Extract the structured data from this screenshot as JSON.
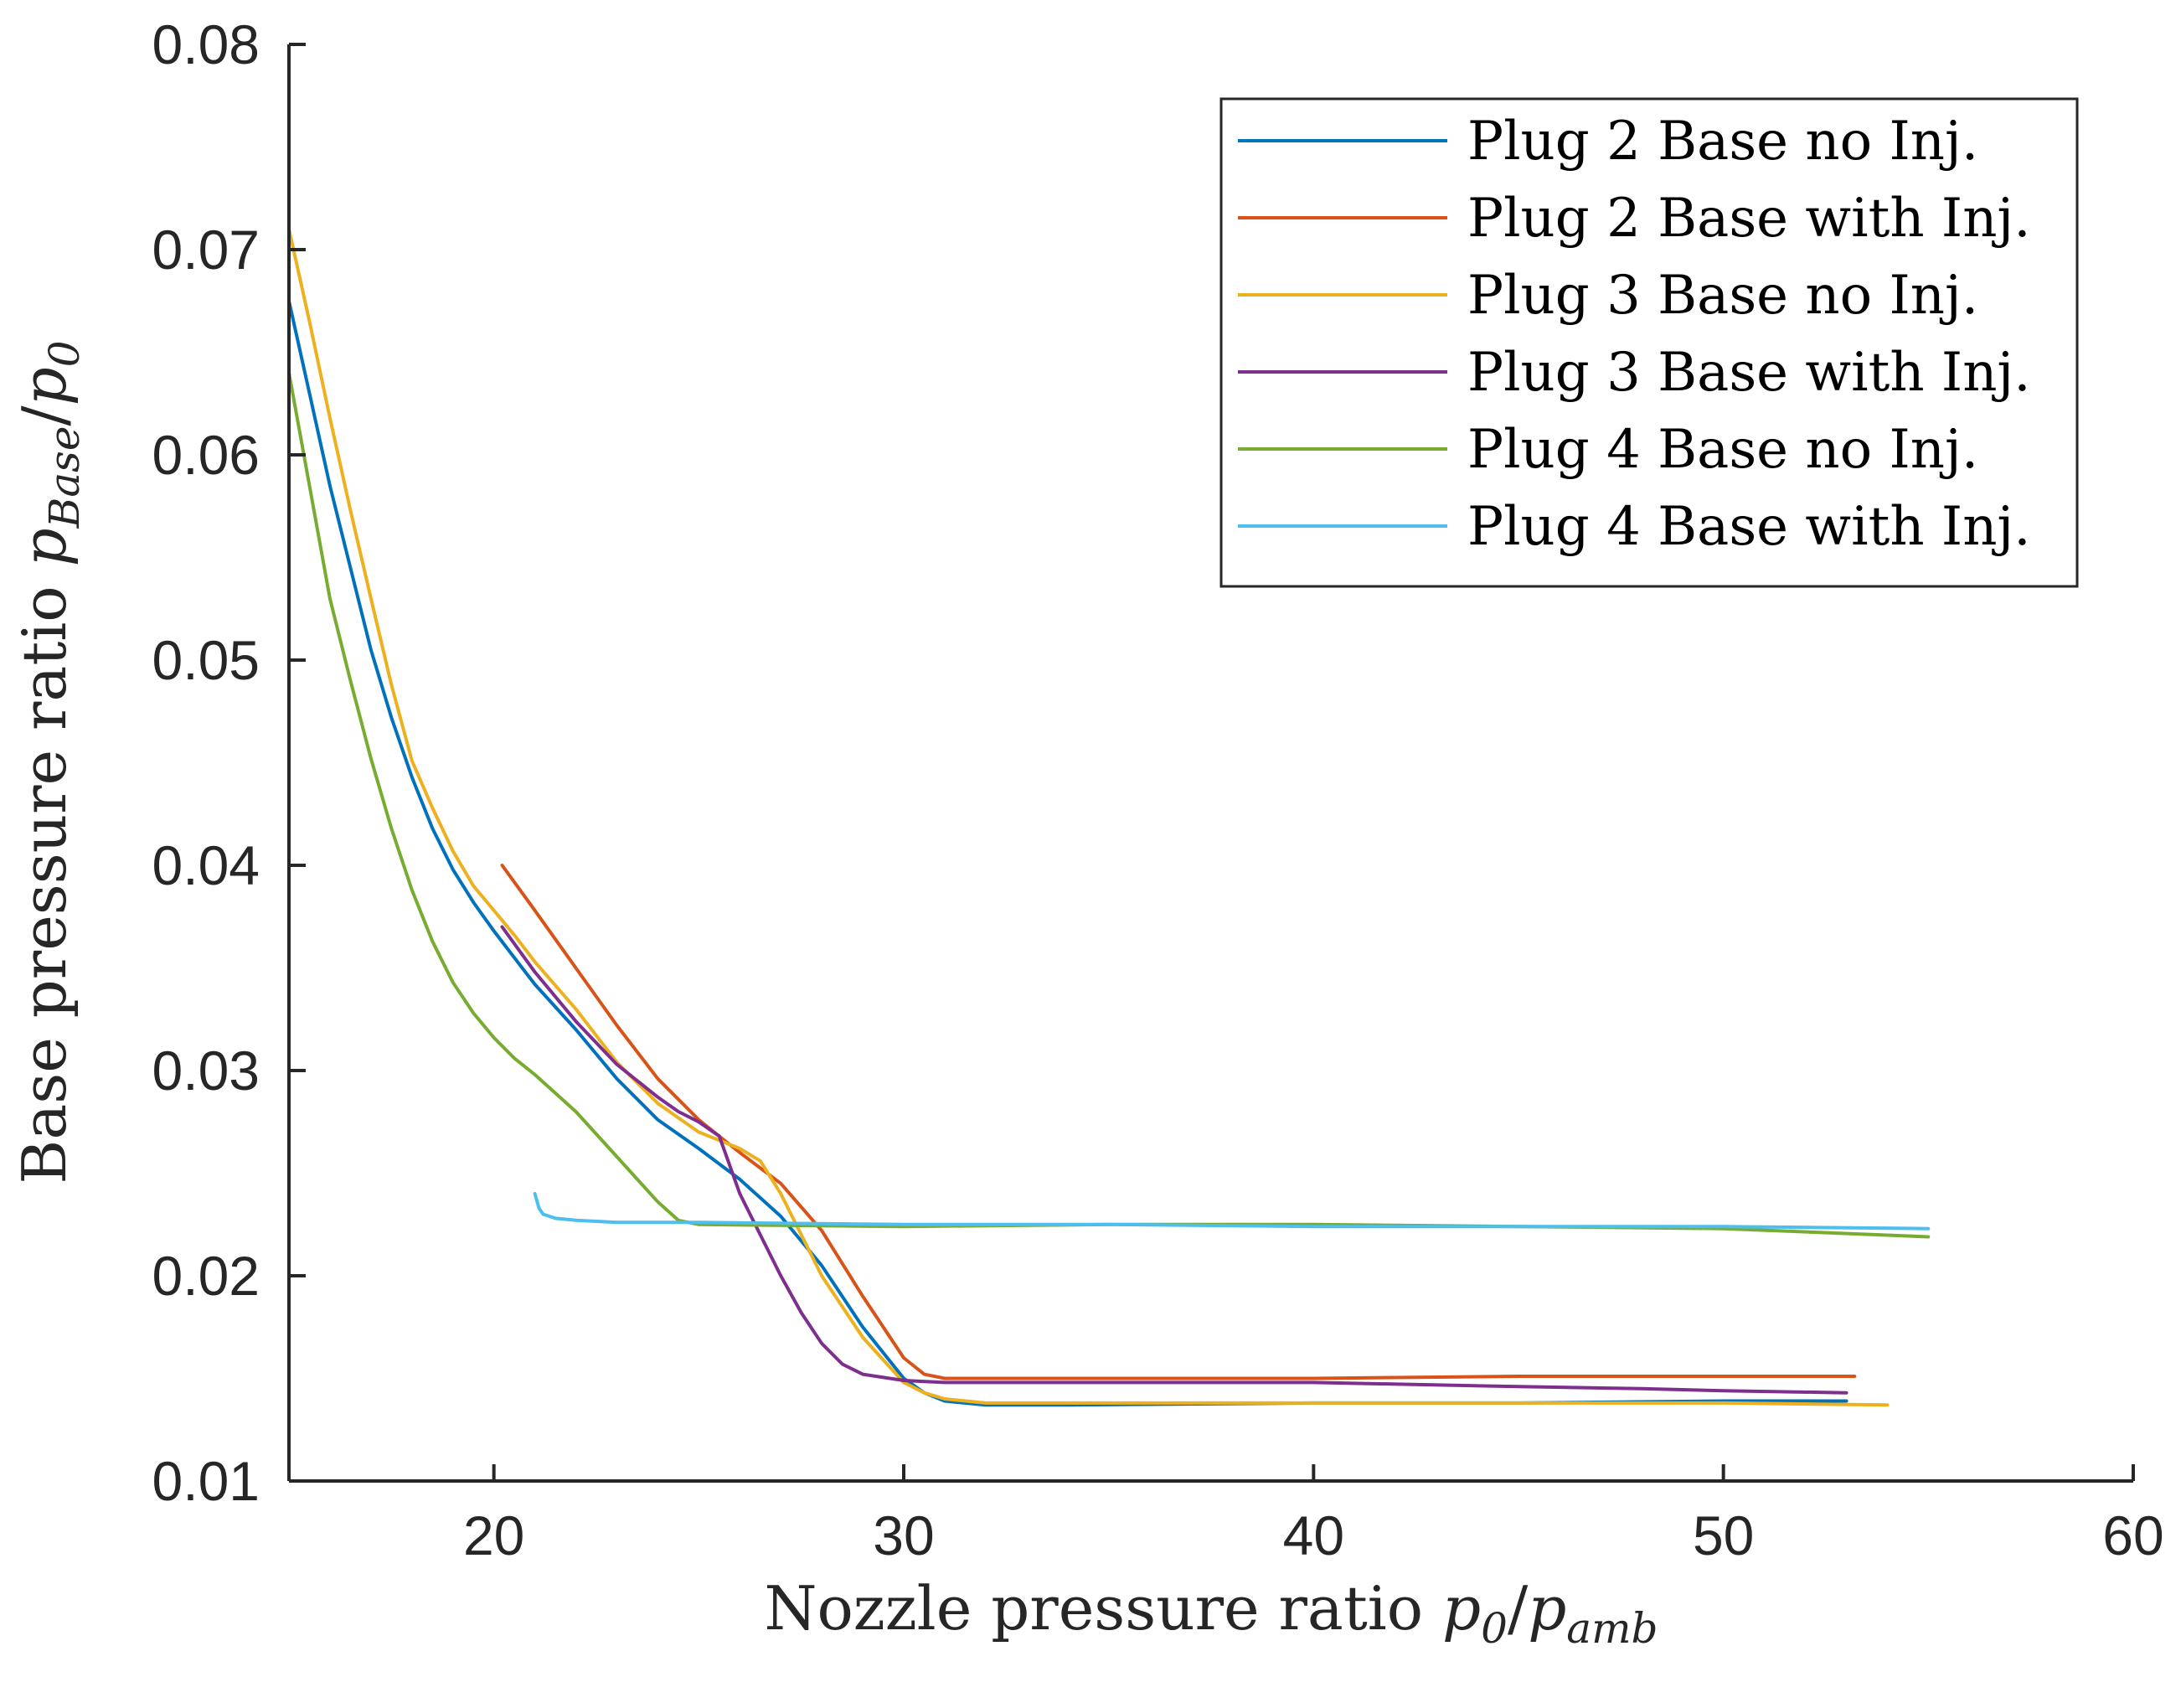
{
  "chart_data": {
    "type": "line",
    "title": "",
    "xlabel_text": "Nozzle pressure ratio",
    "xlabel_math": {
      "base": "p",
      "sub1": "0",
      "sep": "/",
      "base2": "p",
      "sub2": "amb"
    },
    "ylabel_text": "Base pressure ratio",
    "ylabel_math": {
      "base": "p",
      "sub1": "Base",
      "sep": "/",
      "base2": "p",
      "sub2": "0"
    },
    "xlim": [
      15,
      60
    ],
    "ylim": [
      0.01,
      0.08
    ],
    "xticks": [
      20,
      30,
      40,
      50,
      60
    ],
    "xtick_labels": [
      "20",
      "30",
      "40",
      "50",
      "60"
    ],
    "yticks": [
      0.01,
      0.02,
      0.03,
      0.04,
      0.05,
      0.06,
      0.07,
      0.08
    ],
    "ytick_labels": [
      "0.01",
      "0.02",
      "0.03",
      "0.04",
      "0.05",
      "0.06",
      "0.07",
      "0.08"
    ],
    "legend_position": "top-right",
    "grid": false,
    "series": [
      {
        "name": "Plug 2 Base no Inj.",
        "color": "#0072BD",
        "x": [
          15.0,
          15.5,
          16,
          16.5,
          17,
          17.5,
          18,
          18.5,
          19,
          19.5,
          20,
          20.5,
          21,
          22,
          23,
          24,
          25,
          26,
          27,
          28,
          29,
          30,
          30.5,
          31,
          32,
          34,
          40,
          45,
          50,
          53
        ],
        "y": [
          0.0675,
          0.063,
          0.0585,
          0.0545,
          0.0505,
          0.0472,
          0.0443,
          0.0418,
          0.0398,
          0.0382,
          0.0368,
          0.0355,
          0.0342,
          0.032,
          0.0296,
          0.0276,
          0.0262,
          0.0247,
          0.0229,
          0.0205,
          0.0175,
          0.015,
          0.0143,
          0.0139,
          0.0137,
          0.0137,
          0.0138,
          0.0138,
          0.0139,
          0.0139
        ]
      },
      {
        "name": "Plug 2 Base with Inj.",
        "color": "#D95319",
        "x": [
          20.2,
          21,
          22,
          23,
          24,
          25,
          26,
          27,
          28,
          29,
          30,
          30.5,
          31,
          32,
          35,
          40,
          45,
          50,
          53.2
        ],
        "y": [
          0.04,
          0.0378,
          0.035,
          0.0322,
          0.0296,
          0.0276,
          0.026,
          0.0245,
          0.0222,
          0.019,
          0.016,
          0.0152,
          0.015,
          0.015,
          0.015,
          0.015,
          0.0151,
          0.0151,
          0.0151
        ]
      },
      {
        "name": "Plug 3 Base no Inj.",
        "color": "#EDB120",
        "x": [
          15.0,
          15.5,
          16,
          16.5,
          17,
          17.5,
          18,
          18.5,
          19,
          19.5,
          20,
          20.5,
          21,
          22,
          23,
          24,
          25,
          25.5,
          26,
          26.5,
          27,
          28,
          29,
          30,
          30.5,
          31,
          32,
          35,
          40,
          45,
          50,
          54
        ],
        "y": [
          0.071,
          0.0665,
          0.0618,
          0.0573,
          0.053,
          0.0488,
          0.0451,
          0.0428,
          0.0407,
          0.039,
          0.0378,
          0.0366,
          0.0353,
          0.033,
          0.0304,
          0.0284,
          0.027,
          0.0266,
          0.0262,
          0.0256,
          0.024,
          0.02,
          0.017,
          0.0148,
          0.0143,
          0.014,
          0.0138,
          0.0138,
          0.0138,
          0.0138,
          0.0138,
          0.0137
        ]
      },
      {
        "name": "Plug 3 Base with Inj.",
        "color": "#7E2F8E",
        "x": [
          20.2,
          21,
          22,
          23,
          24,
          24.5,
          25,
          25.5,
          26,
          26.5,
          27,
          27.5,
          28,
          28.5,
          29,
          30,
          31,
          35,
          40,
          45,
          48,
          50,
          53
        ],
        "y": [
          0.037,
          0.0348,
          0.0324,
          0.0303,
          0.0287,
          0.028,
          0.0275,
          0.0268,
          0.024,
          0.022,
          0.02,
          0.0182,
          0.0167,
          0.0157,
          0.0152,
          0.0149,
          0.0148,
          0.0148,
          0.0148,
          0.0146,
          0.0145,
          0.0144,
          0.0143
        ]
      },
      {
        "name": "Plug 4 Base no Inj.",
        "color": "#77AC30",
        "x": [
          15.0,
          15.5,
          16,
          16.5,
          17,
          17.5,
          18,
          18.5,
          19,
          19.5,
          20,
          20.5,
          21,
          22,
          23,
          24,
          24.5,
          25,
          30,
          35,
          40,
          45,
          50,
          55
        ],
        "y": [
          0.064,
          0.0585,
          0.053,
          0.049,
          0.0452,
          0.0418,
          0.0388,
          0.0363,
          0.0343,
          0.0328,
          0.0316,
          0.0306,
          0.0298,
          0.028,
          0.0258,
          0.0236,
          0.0227,
          0.0225,
          0.0224,
          0.0225,
          0.0225,
          0.0224,
          0.0223,
          0.0219
        ]
      },
      {
        "name": "Plug 4 Base with Inj.",
        "color": "#4DBEEE",
        "x": [
          21.0,
          21.1,
          21.2,
          21.5,
          22,
          23,
          25,
          30,
          35,
          40,
          45,
          50,
          55
        ],
        "y": [
          0.024,
          0.0233,
          0.023,
          0.0228,
          0.0227,
          0.0226,
          0.0226,
          0.0225,
          0.0225,
          0.0224,
          0.0224,
          0.0224,
          0.0223
        ]
      }
    ]
  }
}
